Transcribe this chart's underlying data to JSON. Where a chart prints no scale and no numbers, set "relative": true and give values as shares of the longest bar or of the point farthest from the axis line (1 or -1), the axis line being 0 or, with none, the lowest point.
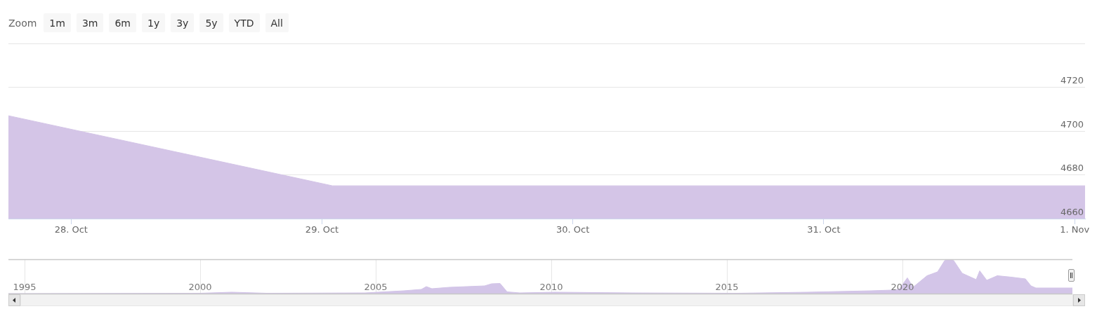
{
  "chart_data": [
    {
      "type": "area",
      "color": "#d4c5e7",
      "x": [
        "--10-27T18:00",
        "--10-29T01:00",
        "--11-01T01:00"
      ],
      "values": [
        4707,
        4675,
        4675
      ],
      "xlim": [
        "--10-27T18:00",
        "--11-01T01:00"
      ],
      "xticks": [
        {
          "value": "--10-28",
          "label": "28. Oct"
        },
        {
          "value": "--10-29",
          "label": "29. Oct"
        },
        {
          "value": "--10-30",
          "label": "30. Oct"
        },
        {
          "value": "--10-31",
          "label": "31. Oct"
        },
        {
          "value": "--11-01",
          "label": "1. Nov"
        }
      ],
      "ylim": [
        4660,
        4740
      ],
      "yticks": [
        4660,
        4680,
        4700,
        4720,
        {
          "value": 4740,
          "label": null
        }
      ],
      "grid": "y",
      "legend": false,
      "annotations": [
        "Zoom",
        "1m",
        "3m",
        "6m",
        "1y",
        "3y",
        "5y",
        "YTD",
        "All"
      ]
    },
    {
      "type": "area",
      "color": "#d3c5e8",
      "relative": true,
      "tick_labels": "x",
      "grid": "x",
      "legend": false,
      "x": [
        1994.54,
        1995,
        2000,
        2000.9,
        2001.9,
        2004.7,
        2005.8,
        2006.3,
        2006.44,
        2006.6,
        2007.1,
        2008.1,
        2008.3,
        2008.54,
        2008.74,
        2009.1,
        2010.1,
        2012.3,
        2015.3,
        2017.3,
        2019.1,
        2019.7,
        2019.9,
        2020.14,
        2020.3,
        2020.7,
        2021,
        2021.2,
        2021.34,
        2021.46,
        2021.7,
        2022.1,
        2022.2,
        2022.4,
        2022.7,
        2023.1,
        2023.5,
        2023.66,
        2023.8,
        2024.84
      ],
      "values": [
        0.02,
        0.02,
        0.03,
        0.06,
        0.03,
        0.04,
        0.1,
        0.14,
        0.22,
        0.16,
        0.2,
        0.24,
        0.3,
        0.31,
        0.07,
        0.04,
        0.06,
        0.04,
        0.03,
        0.06,
        0.1,
        0.12,
        0.14,
        0.47,
        0.2,
        0.53,
        0.64,
        0.96,
        1,
        0.96,
        0.6,
        0.42,
        0.67,
        0.4,
        0.53,
        0.49,
        0.44,
        0.24,
        0.18,
        0.18
      ],
      "xlim": [
        1994.54,
        2024.84
      ],
      "xticks": [
        1995,
        2000,
        2005,
        2010,
        2015,
        2020
      ]
    }
  ]
}
